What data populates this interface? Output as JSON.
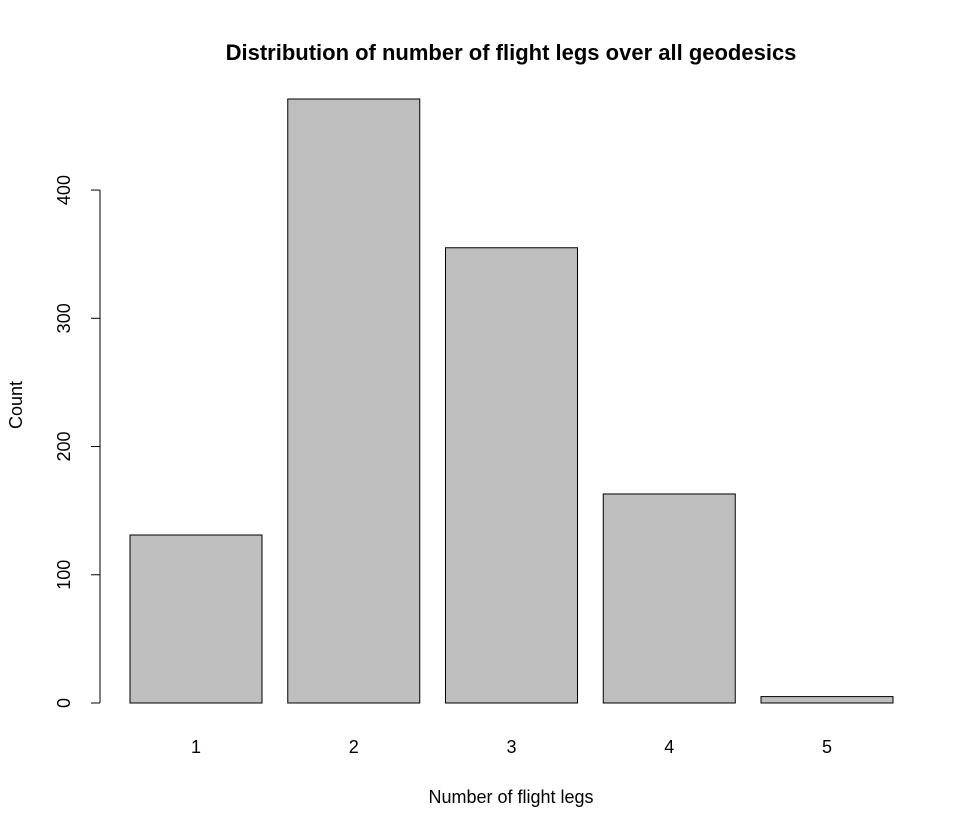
{
  "chart_data": {
    "type": "bar",
    "title": "Distribution of number of flight legs over all geodesics",
    "xlabel": "Number of flight legs",
    "ylabel": "Count",
    "categories": [
      "1",
      "2",
      "3",
      "4",
      "5"
    ],
    "values": [
      131,
      471,
      355,
      163,
      5
    ],
    "ylim": [
      0,
      471
    ],
    "yticks": [
      0,
      100,
      200,
      300,
      400
    ],
    "grid": false,
    "bar_color": "#bebebe"
  }
}
